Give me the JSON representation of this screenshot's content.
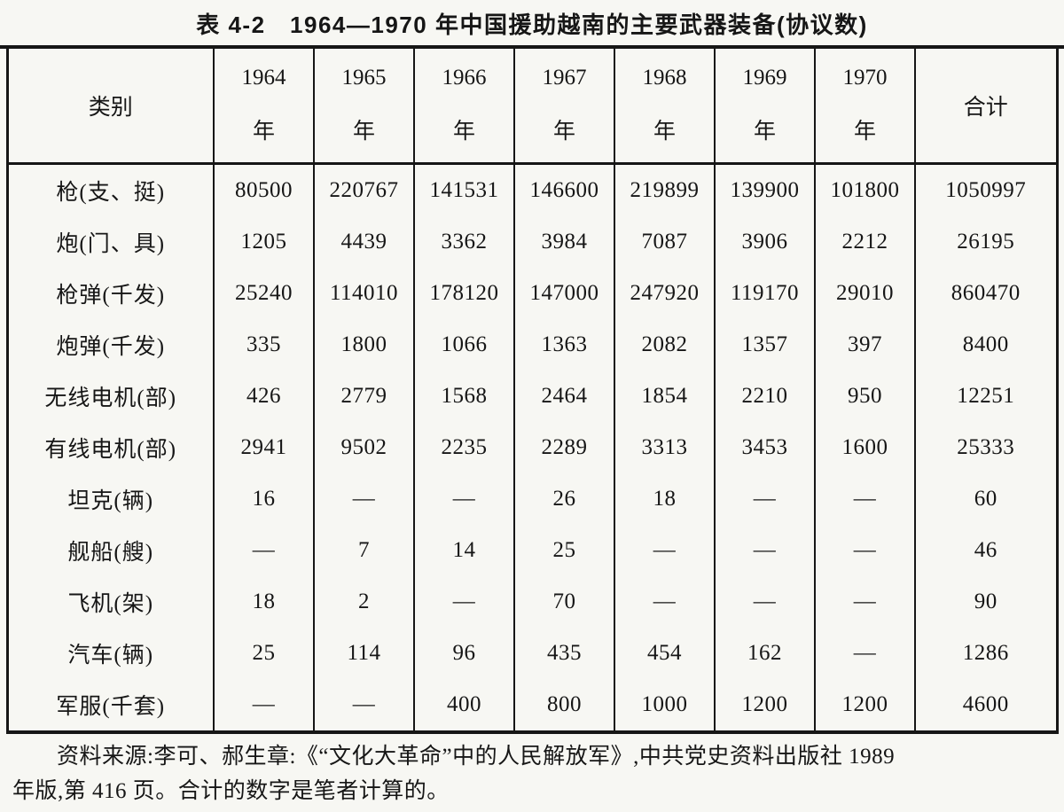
{
  "title": "表 4-2　1964—1970 年中国援助越南的主要武器装备(协议数)",
  "table": {
    "category_header": "类别",
    "total_header": "合计",
    "year_suffix": "年",
    "years": [
      "1964",
      "1965",
      "1966",
      "1967",
      "1968",
      "1969",
      "1970"
    ],
    "rows": [
      {
        "label": "枪(支、挺)",
        "values": [
          "80500",
          "220767",
          "141531",
          "146600",
          "219899",
          "139900",
          "101800",
          "1050997"
        ]
      },
      {
        "label": "炮(门、具)",
        "values": [
          "1205",
          "4439",
          "3362",
          "3984",
          "7087",
          "3906",
          "2212",
          "26195"
        ]
      },
      {
        "label": "枪弹(千发)",
        "values": [
          "25240",
          "114010",
          "178120",
          "147000",
          "247920",
          "119170",
          "29010",
          "860470"
        ]
      },
      {
        "label": "炮弹(千发)",
        "values": [
          "335",
          "1800",
          "1066",
          "1363",
          "2082",
          "1357",
          "397",
          "8400"
        ]
      },
      {
        "label": "无线电机(部)",
        "values": [
          "426",
          "2779",
          "1568",
          "2464",
          "1854",
          "2210",
          "950",
          "12251"
        ]
      },
      {
        "label": "有线电机(部)",
        "values": [
          "2941",
          "9502",
          "2235",
          "2289",
          "3313",
          "3453",
          "1600",
          "25333"
        ]
      },
      {
        "label": "坦克(辆)",
        "values": [
          "16",
          "—",
          "—",
          "26",
          "18",
          "—",
          "—",
          "60"
        ]
      },
      {
        "label": "舰船(艘)",
        "values": [
          "—",
          "7",
          "14",
          "25",
          "—",
          "—",
          "—",
          "46"
        ]
      },
      {
        "label": "飞机(架)",
        "values": [
          "18",
          "2",
          "—",
          "70",
          "—",
          "—",
          "—",
          "90"
        ]
      },
      {
        "label": "汽车(辆)",
        "values": [
          "25",
          "114",
          "96",
          "435",
          "454",
          "162",
          "—",
          "1286"
        ]
      },
      {
        "label": "军服(千套)",
        "values": [
          "—",
          "—",
          "400",
          "800",
          "1000",
          "1200",
          "1200",
          "4600"
        ]
      }
    ]
  },
  "footer": {
    "lines": [
      "资料来源:李可、郝生章:《“文化大革命”中的人民解放军》,中共党史资料出版社 1989",
      "年版,第 416 页。合计的数字是笔者计算的。"
    ]
  }
}
